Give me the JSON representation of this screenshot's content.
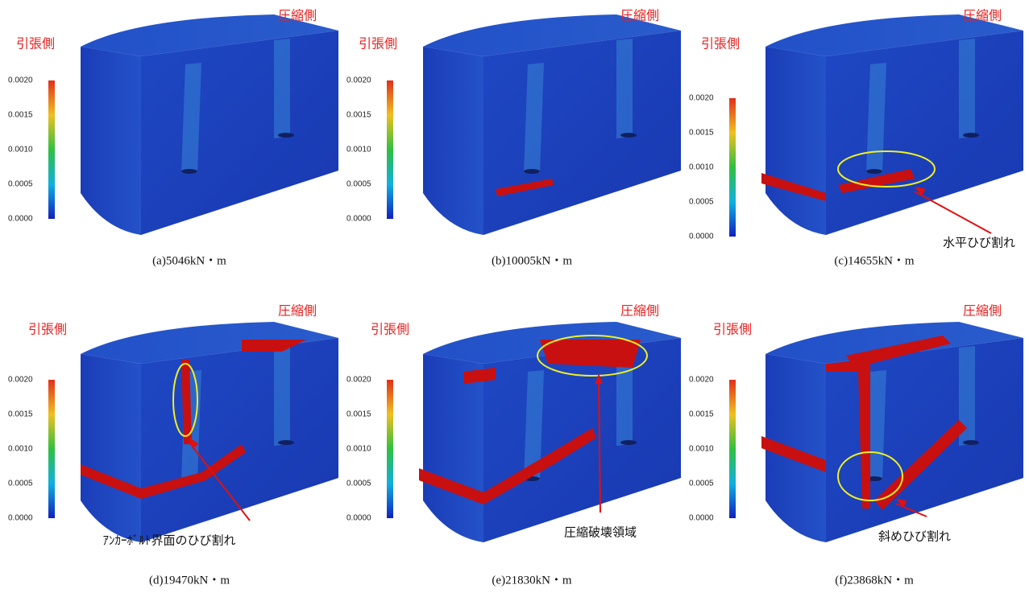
{
  "colorbar": {
    "ticks": [
      "0.0020",
      "0.0015",
      "0.0010",
      "0.0005",
      "0.0000"
    ]
  },
  "tension_label": "引張側",
  "compression_label": "圧縮側",
  "panels": [
    {
      "caption": "(a)5046kN・m"
    },
    {
      "caption": "(b)10005kN・m"
    },
    {
      "caption": "(c)14655kN・m",
      "annotation": "水平ひび割れ"
    },
    {
      "caption": "(d)19470kN・m",
      "annotation": "ｱﾝｶｰﾎﾞﾙﾄ界面のひび割れ"
    },
    {
      "caption": "(e)21830kN・m",
      "annotation": "圧縮破壊領域"
    },
    {
      "caption": "(f)23868kN・m",
      "annotation": "斜めひび割れ"
    }
  ]
}
